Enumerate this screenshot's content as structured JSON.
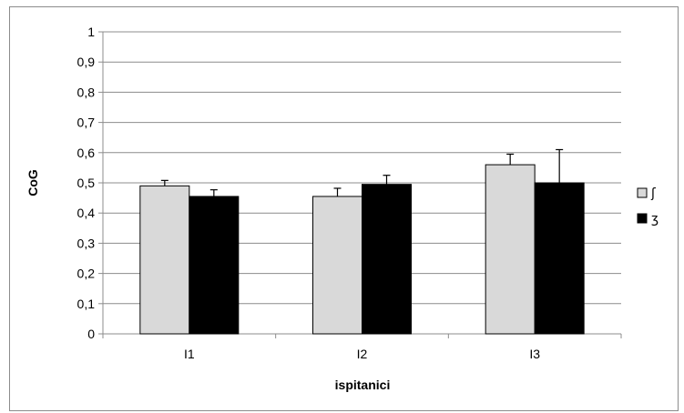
{
  "chart_data": {
    "type": "bar",
    "title": "",
    "xlabel": "ispitanici",
    "ylabel": "CoG",
    "ylim": [
      0,
      1
    ],
    "yticks": [
      "0",
      "0,1",
      "0,2",
      "0,3",
      "0,4",
      "0,5",
      "0,6",
      "0,7",
      "0,8",
      "0,9",
      "1"
    ],
    "grid": true,
    "legend_position": "right",
    "categories": [
      "I1",
      "I2",
      "I3"
    ],
    "series": [
      {
        "name": "ʃ",
        "color": "#d9d9d9",
        "values": [
          0.49,
          0.455,
          0.56
        ],
        "error": [
          0.018,
          0.027,
          0.035
        ]
      },
      {
        "name": "ʒ",
        "color": "#000000",
        "values": [
          0.455,
          0.495,
          0.5
        ],
        "error": [
          0.022,
          0.03,
          0.11
        ]
      }
    ]
  }
}
